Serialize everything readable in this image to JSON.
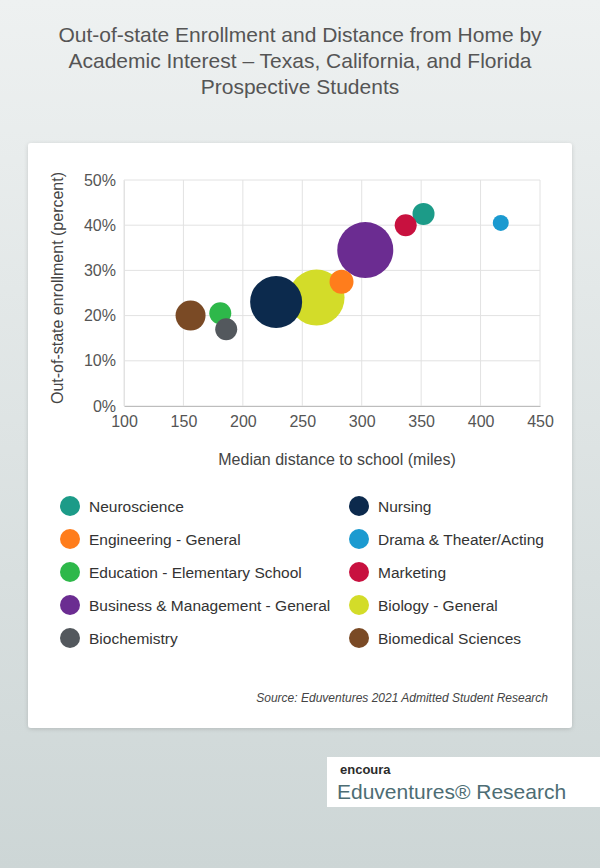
{
  "chart_data": {
    "type": "scatter",
    "title": "Out-of-state Enrollment and Distance from Home by Academic Interest – Texas, California, and Florida Prospective Students",
    "x_label": "Median distance to school (miles)",
    "y_label": "Out-of-state enrollment (percent)",
    "annotations": [
      "Source: Eduventures 2021 Admitted Student Research",
      "encoura",
      "Eduventures® Research"
    ],
    "xlim": [
      100,
      450
    ],
    "xticks": [
      100,
      150,
      200,
      250,
      300,
      350,
      400,
      450
    ],
    "ylim": [
      0,
      50
    ],
    "yticks": [
      {
        "value": 0,
        "label": "0%"
      },
      {
        "value": 10,
        "label": "10%"
      },
      {
        "value": 20,
        "label": "20%"
      },
      {
        "value": 30,
        "label": "30%"
      },
      {
        "value": 40,
        "label": "40%"
      },
      {
        "value": 50,
        "label": "50%"
      }
    ],
    "grid": true,
    "marker": "circle",
    "series": [
      {
        "name": "Neuroscience",
        "color": "#1c9b88",
        "x": [
          352
        ],
        "values": [
          42.5
        ],
        "sizes": [
          121
        ]
      },
      {
        "name": "Nursing",
        "color": "#0c2a4d",
        "x": [
          228
        ],
        "values": [
          23
        ],
        "sizes": [
          676
        ]
      },
      {
        "name": "Engineering - General",
        "color": "#ff7d1c",
        "x": [
          283
        ],
        "values": [
          27.5
        ],
        "sizes": [
          144
        ]
      },
      {
        "name": "Drama & Theater/Acting",
        "color": "#1b9ad0",
        "x": [
          417
        ],
        "values": [
          40.5
        ],
        "sizes": [
          64
        ]
      },
      {
        "name": "Education - Elementary School",
        "color": "#2eb84a",
        "x": [
          181
        ],
        "values": [
          20.5
        ],
        "sizes": [
          121
        ]
      },
      {
        "name": "Marketing",
        "color": "#c8113f",
        "x": [
          337
        ],
        "values": [
          40
        ],
        "sizes": [
          121
        ]
      },
      {
        "name": "Business & Management - General",
        "color": "#6b2c91",
        "x": [
          303
        ],
        "values": [
          34.5
        ],
        "sizes": [
          784
        ]
      },
      {
        "name": "Biology - General",
        "color": "#d3dc29",
        "x": [
          262
        ],
        "values": [
          24
        ],
        "sizes": [
          784
        ]
      },
      {
        "name": "Biochemistry",
        "color": "#53585d",
        "x": [
          186
        ],
        "values": [
          17
        ],
        "sizes": [
          121
        ]
      },
      {
        "name": "Biomedical Sciences",
        "color": "#7a4a25",
        "x": [
          156
        ],
        "values": [
          20
        ],
        "sizes": [
          225
        ]
      }
    ]
  }
}
